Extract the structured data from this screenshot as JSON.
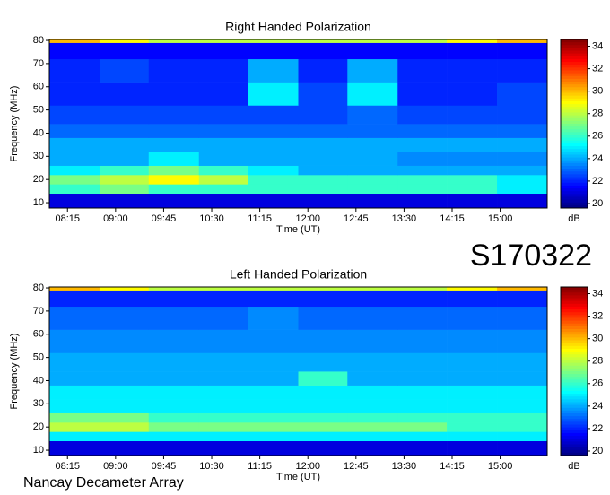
{
  "label": "S170322",
  "credit": "Nancay Decameter Array",
  "chart_data": [
    {
      "type": "heatmap",
      "title": "Right Handed Polarization",
      "xlabel": "Time (UT)",
      "ylabel": "Frequency (MHz)",
      "colormap": "jet",
      "colorbar_label": "dB",
      "zlim": [
        19.6,
        34.6
      ],
      "zticks": [
        20,
        22,
        24,
        26,
        28,
        30,
        32,
        34
      ],
      "xlim": [
        478,
        944
      ],
      "ylim": [
        7.7,
        80.4
      ],
      "xticks": [
        {
          "value": 495,
          "label": "08:15"
        },
        {
          "value": 540,
          "label": "09:00"
        },
        {
          "value": 585,
          "label": "09:45"
        },
        {
          "value": 630,
          "label": "10:30"
        },
        {
          "value": 675,
          "label": "11:15"
        },
        {
          "value": 720,
          "label": "12:00"
        },
        {
          "value": 765,
          "label": "12:45"
        },
        {
          "value": 810,
          "label": "13:30"
        },
        {
          "value": 855,
          "label": "14:15"
        },
        {
          "value": 900,
          "label": "15:00"
        }
      ],
      "yticks": [
        10,
        20,
        30,
        40,
        50,
        60,
        70,
        80
      ],
      "x_bins": [
        478,
        525,
        571,
        618,
        664,
        711,
        757,
        804,
        850,
        897,
        944
      ],
      "y_bins": [
        7.7,
        14,
        18,
        22,
        26,
        32,
        38,
        44,
        52,
        62,
        72,
        79,
        80.4
      ],
      "z": [
        [
          21,
          21,
          21,
          21,
          21,
          21,
          21,
          21,
          21,
          21
        ],
        [
          26,
          27,
          26,
          26,
          26,
          26,
          26,
          26,
          26,
          25
        ],
        [
          27,
          28,
          29,
          28,
          26,
          26,
          26,
          26,
          26,
          25
        ],
        [
          25,
          26,
          27,
          26,
          25,
          24,
          24,
          24,
          24,
          24
        ],
        [
          24,
          24,
          25,
          24,
          24,
          24,
          24,
          23.5,
          23.5,
          23.5
        ],
        [
          24,
          24,
          24,
          24,
          24,
          24,
          24,
          24,
          24,
          24
        ],
        [
          23,
          23,
          23,
          23,
          23,
          23,
          23,
          23,
          23,
          23
        ],
        [
          22.5,
          22.5,
          22.5,
          22.5,
          22.5,
          22.5,
          23,
          22.5,
          22.5,
          22.5
        ],
        [
          22,
          22,
          22,
          22,
          25,
          22.5,
          25,
          22,
          22,
          22.5
        ],
        [
          22,
          22.5,
          22,
          22,
          24,
          22,
          24,
          22,
          22,
          22
        ],
        [
          21.5,
          21.5,
          21.5,
          21.5,
          21.5,
          21.5,
          21.5,
          21.5,
          21.5,
          21.5
        ],
        [
          30,
          29,
          28,
          28,
          28,
          28,
          28,
          28,
          29,
          30
        ]
      ]
    },
    {
      "type": "heatmap",
      "title": "Left Handed Polarization",
      "xlabel": "Time (UT)",
      "ylabel": "Frequency (MHz)",
      "colormap": "jet",
      "colorbar_label": "dB",
      "zlim": [
        19.6,
        34.6
      ],
      "zticks": [
        20,
        22,
        24,
        26,
        28,
        30,
        32,
        34
      ],
      "xlim": [
        478,
        944
      ],
      "ylim": [
        7.7,
        80.4
      ],
      "xticks": [
        {
          "value": 495,
          "label": "08:15"
        },
        {
          "value": 540,
          "label": "09:00"
        },
        {
          "value": 585,
          "label": "09:45"
        },
        {
          "value": 630,
          "label": "10:30"
        },
        {
          "value": 675,
          "label": "11:15"
        },
        {
          "value": 720,
          "label": "12:00"
        },
        {
          "value": 765,
          "label": "12:45"
        },
        {
          "value": 810,
          "label": "13:30"
        },
        {
          "value": 855,
          "label": "14:15"
        },
        {
          "value": 900,
          "label": "15:00"
        }
      ],
      "yticks": [
        10,
        20,
        30,
        40,
        50,
        60,
        70,
        80
      ],
      "x_bins": [
        478,
        525,
        571,
        618,
        664,
        711,
        757,
        804,
        850,
        897,
        944
      ],
      "y_bins": [
        7.7,
        14,
        18,
        22,
        26,
        32,
        38,
        44,
        52,
        62,
        72,
        79,
        80.4
      ],
      "z": [
        [
          21,
          21,
          21,
          21,
          21,
          21,
          21,
          21,
          21,
          21
        ],
        [
          25,
          25,
          25,
          25,
          25,
          25,
          25,
          25,
          25,
          25
        ],
        [
          28,
          28,
          27,
          27,
          27,
          27,
          27,
          27,
          26,
          26
        ],
        [
          27,
          27,
          26,
          26,
          26,
          26,
          26,
          26,
          26,
          26
        ],
        [
          25,
          25,
          25,
          25,
          25,
          25,
          25,
          25,
          25,
          25
        ],
        [
          25,
          25,
          25,
          25,
          25,
          25,
          25,
          25,
          25,
          25
        ],
        [
          24,
          24,
          24,
          24,
          24,
          26,
          24,
          24,
          24,
          24
        ],
        [
          24,
          24,
          24,
          24,
          24,
          24,
          24,
          24,
          24,
          24
        ],
        [
          23.5,
          23.5,
          23.5,
          23.5,
          23.5,
          23.5,
          23.5,
          23.5,
          23.5,
          23.5
        ],
        [
          23,
          23,
          23,
          23,
          23.5,
          23,
          23,
          23,
          23,
          23
        ],
        [
          22,
          22,
          22,
          22,
          22,
          22,
          22,
          22,
          22,
          22
        ],
        [
          30,
          29,
          28,
          28,
          28,
          28,
          28,
          28,
          29,
          30
        ]
      ]
    }
  ]
}
